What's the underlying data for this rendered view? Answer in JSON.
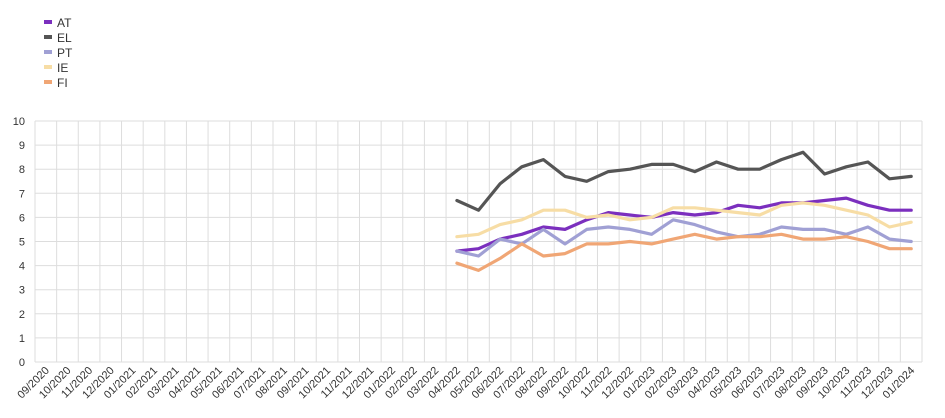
{
  "chart_data": {
    "type": "line",
    "title": "",
    "xlabel": "",
    "ylabel": "",
    "ylim": [
      0,
      10
    ],
    "yticks": [
      "0",
      "1",
      "2",
      "3",
      "4",
      "5",
      "6",
      "7",
      "8",
      "9",
      "10"
    ],
    "grid": true,
    "legend_position": "top-left",
    "categories": [
      "09/2020",
      "10/2020",
      "11/2020",
      "12/2020",
      "01/2021",
      "02/2021",
      "03/2021",
      "04/2021",
      "05/2021",
      "06/2021",
      "07/2021",
      "08/2021",
      "09/2021",
      "10/2021",
      "11/2021",
      "12/2021",
      "01/2022",
      "02/2022",
      "03/2022",
      "04/2022",
      "05/2022",
      "06/2022",
      "07/2022",
      "08/2022",
      "09/2022",
      "10/2022",
      "11/2022",
      "12/2022",
      "01/2023",
      "02/2023",
      "03/2023",
      "04/2023",
      "05/2023",
      "06/2023",
      "07/2023",
      "08/2023",
      "09/2023",
      "10/2023",
      "11/2023",
      "12/2023",
      "01/2024"
    ],
    "series": [
      {
        "name": "AT",
        "color": "#7B2FBE",
        "values": [
          null,
          null,
          null,
          null,
          null,
          null,
          null,
          null,
          null,
          null,
          null,
          null,
          null,
          null,
          null,
          null,
          null,
          null,
          null,
          4.6,
          4.7,
          5.1,
          5.3,
          5.6,
          5.5,
          5.9,
          6.2,
          6.1,
          6.0,
          6.2,
          6.1,
          6.2,
          6.5,
          6.4,
          6.6,
          6.6,
          6.7,
          6.8,
          6.5,
          6.3,
          6.3
        ]
      },
      {
        "name": "EL",
        "color": "#555555",
        "values": [
          null,
          null,
          null,
          null,
          null,
          null,
          null,
          null,
          null,
          null,
          null,
          null,
          null,
          null,
          null,
          null,
          null,
          null,
          null,
          6.7,
          6.3,
          7.4,
          8.1,
          8.4,
          7.7,
          7.5,
          7.9,
          8.0,
          8.2,
          8.2,
          7.9,
          8.3,
          8.0,
          8.0,
          8.4,
          8.7,
          7.8,
          8.1,
          8.3,
          7.6,
          7.7
        ]
      },
      {
        "name": "PT",
        "color": "#A0A0D4",
        "values": [
          null,
          null,
          null,
          null,
          null,
          null,
          null,
          null,
          null,
          null,
          null,
          null,
          null,
          null,
          null,
          null,
          null,
          null,
          null,
          4.6,
          4.4,
          5.1,
          4.9,
          5.5,
          4.9,
          5.5,
          5.6,
          5.5,
          5.3,
          5.9,
          5.7,
          5.4,
          5.2,
          5.3,
          5.6,
          5.5,
          5.5,
          5.3,
          5.6,
          5.1,
          5.0
        ]
      },
      {
        "name": "IE",
        "color": "#F7DDA5",
        "values": [
          null,
          null,
          null,
          null,
          null,
          null,
          null,
          null,
          null,
          null,
          null,
          null,
          null,
          null,
          null,
          null,
          null,
          null,
          null,
          5.2,
          5.3,
          5.7,
          5.9,
          6.3,
          6.3,
          6.0,
          6.1,
          5.9,
          6.0,
          6.4,
          6.4,
          6.3,
          6.2,
          6.1,
          6.5,
          6.6,
          6.5,
          6.3,
          6.1,
          5.6,
          5.8
        ]
      },
      {
        "name": "FI",
        "color": "#F0A675",
        "values": [
          null,
          null,
          null,
          null,
          null,
          null,
          null,
          null,
          null,
          null,
          null,
          null,
          null,
          null,
          null,
          null,
          null,
          null,
          null,
          4.1,
          3.8,
          4.3,
          4.9,
          4.4,
          4.5,
          4.9,
          4.9,
          5.0,
          4.9,
          5.1,
          5.3,
          5.1,
          5.2,
          5.2,
          5.3,
          5.1,
          5.1,
          5.2,
          5.0,
          4.7,
          4.7
        ]
      }
    ]
  }
}
